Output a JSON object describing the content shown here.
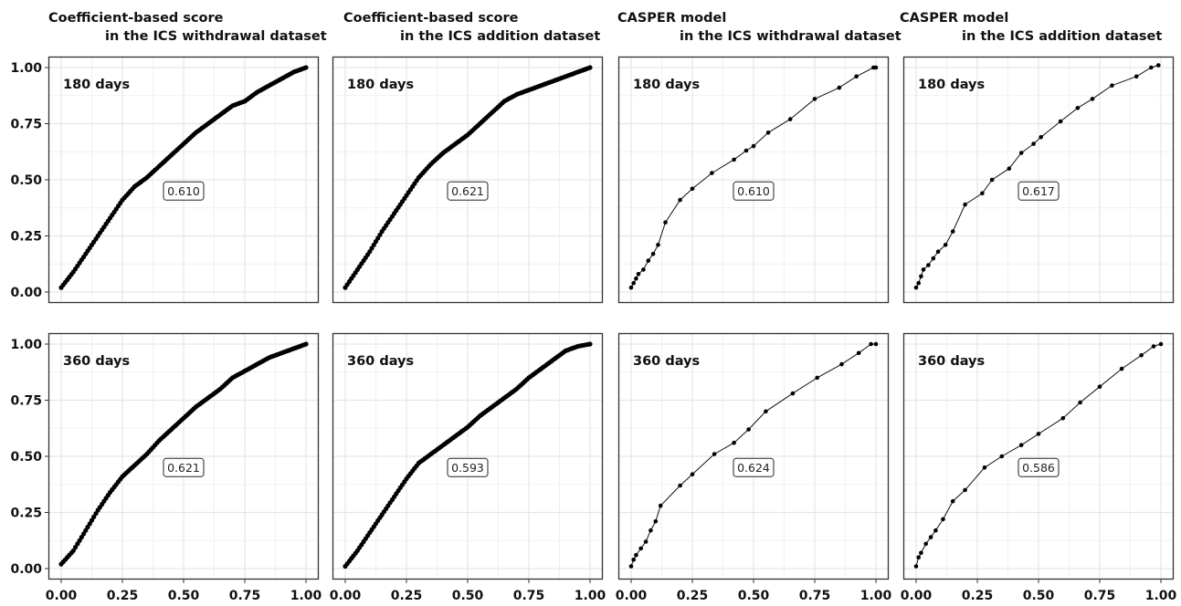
{
  "column_titles": [
    {
      "line1": "Coefficient-based score",
      "line2": "in the ICS withdrawal dataset"
    },
    {
      "line1": "Coefficient-based score",
      "line2": "in the ICS addition dataset"
    },
    {
      "line1": "CASPER model",
      "line2": "in the ICS withdrawal dataset"
    },
    {
      "line1": "CASPER model",
      "line2": "in the ICS addition dataset"
    }
  ],
  "row_labels": [
    "180 days",
    "360 days"
  ],
  "colors": {
    "line": "#111111",
    "point": "#000000",
    "grid": "#e6e6e6",
    "frame": "#333333"
  },
  "chart_data": [
    {
      "type": "line",
      "row": 0,
      "col": 0,
      "label": "180 days",
      "annotation": "0.610",
      "dense": true,
      "x": [
        0,
        0.05,
        0.1,
        0.15,
        0.2,
        0.25,
        0.3,
        0.35,
        0.4,
        0.45,
        0.5,
        0.55,
        0.6,
        0.65,
        0.7,
        0.75,
        0.8,
        0.85,
        0.9,
        0.95,
        1.0
      ],
      "y": [
        0.02,
        0.09,
        0.17,
        0.25,
        0.33,
        0.41,
        0.47,
        0.51,
        0.56,
        0.61,
        0.66,
        0.71,
        0.75,
        0.79,
        0.83,
        0.85,
        0.89,
        0.92,
        0.95,
        0.98,
        1.0
      ],
      "xlim": [
        0,
        1
      ],
      "ylim": [
        0,
        1
      ],
      "xticks": [
        "0.00",
        "0.25",
        "0.50",
        "0.75",
        "1.00"
      ],
      "yticks": [
        "0.00",
        "0.25",
        "0.50",
        "0.75",
        "1.00"
      ]
    },
    {
      "type": "line",
      "row": 0,
      "col": 1,
      "label": "180 days",
      "annotation": "0.621",
      "dense": true,
      "x": [
        0,
        0.05,
        0.1,
        0.15,
        0.2,
        0.25,
        0.3,
        0.35,
        0.4,
        0.45,
        0.5,
        0.55,
        0.6,
        0.65,
        0.7,
        0.75,
        0.8,
        0.85,
        0.9,
        0.95,
        1.0
      ],
      "y": [
        0.02,
        0.1,
        0.18,
        0.27,
        0.35,
        0.43,
        0.51,
        0.57,
        0.62,
        0.66,
        0.7,
        0.75,
        0.8,
        0.85,
        0.88,
        0.9,
        0.92,
        0.94,
        0.96,
        0.98,
        1.0
      ],
      "xlim": [
        0,
        1
      ],
      "ylim": [
        0,
        1
      ],
      "xticks": [
        "0.00",
        "0.25",
        "0.50",
        "0.75",
        "1.00"
      ],
      "yticks": [
        "0.00",
        "0.25",
        "0.50",
        "0.75",
        "1.00"
      ]
    },
    {
      "type": "line",
      "row": 0,
      "col": 2,
      "label": "180 days",
      "annotation": "0.610",
      "dense": false,
      "x": [
        0,
        0.01,
        0.02,
        0.03,
        0.05,
        0.07,
        0.09,
        0.11,
        0.14,
        0.2,
        0.25,
        0.33,
        0.42,
        0.47,
        0.5,
        0.56,
        0.65,
        0.75,
        0.85,
        0.92,
        0.99,
        1.0
      ],
      "y": [
        0.02,
        0.04,
        0.06,
        0.08,
        0.1,
        0.14,
        0.17,
        0.21,
        0.31,
        0.41,
        0.46,
        0.53,
        0.59,
        0.63,
        0.65,
        0.71,
        0.77,
        0.86,
        0.91,
        0.96,
        1.0,
        1.0
      ],
      "xlim": [
        0,
        1
      ],
      "ylim": [
        0,
        1
      ],
      "xticks": [
        "0.00",
        "0.25",
        "0.50",
        "0.75",
        "1.00"
      ],
      "yticks": [
        "0.00",
        "0.25",
        "0.50",
        "0.75",
        "1.00"
      ]
    },
    {
      "type": "line",
      "row": 0,
      "col": 3,
      "label": "180 days",
      "annotation": "0.617",
      "dense": false,
      "x": [
        0,
        0.01,
        0.02,
        0.03,
        0.05,
        0.07,
        0.09,
        0.12,
        0.15,
        0.2,
        0.27,
        0.31,
        0.38,
        0.43,
        0.48,
        0.51,
        0.59,
        0.66,
        0.72,
        0.8,
        0.9,
        0.96,
        0.99
      ],
      "y": [
        0.02,
        0.04,
        0.07,
        0.1,
        0.12,
        0.15,
        0.18,
        0.21,
        0.27,
        0.39,
        0.44,
        0.5,
        0.55,
        0.62,
        0.66,
        0.69,
        0.76,
        0.82,
        0.86,
        0.92,
        0.96,
        1.0,
        1.01
      ],
      "xlim": [
        0,
        1
      ],
      "ylim": [
        0,
        1
      ],
      "xticks": [
        "0.00",
        "0.25",
        "0.50",
        "0.75",
        "1.00"
      ],
      "yticks": [
        "0.00",
        "0.25",
        "0.50",
        "0.75",
        "1.00"
      ]
    },
    {
      "type": "line",
      "row": 1,
      "col": 0,
      "label": "360 days",
      "annotation": "0.621",
      "dense": true,
      "x": [
        0,
        0.05,
        0.1,
        0.15,
        0.2,
        0.25,
        0.3,
        0.35,
        0.4,
        0.45,
        0.5,
        0.55,
        0.6,
        0.65,
        0.7,
        0.75,
        0.8,
        0.85,
        0.9,
        0.95,
        1.0
      ],
      "y": [
        0.02,
        0.08,
        0.17,
        0.26,
        0.34,
        0.41,
        0.46,
        0.51,
        0.57,
        0.62,
        0.67,
        0.72,
        0.76,
        0.8,
        0.85,
        0.88,
        0.91,
        0.94,
        0.96,
        0.98,
        1.0
      ],
      "xlim": [
        0,
        1
      ],
      "ylim": [
        0,
        1
      ],
      "xticks": [
        "0.00",
        "0.25",
        "0.50",
        "0.75",
        "1.00"
      ],
      "yticks": [
        "0.00",
        "0.25",
        "0.50",
        "0.75",
        "1.00"
      ]
    },
    {
      "type": "line",
      "row": 1,
      "col": 1,
      "label": "360 days",
      "annotation": "0.593",
      "dense": true,
      "x": [
        0,
        0.05,
        0.1,
        0.15,
        0.2,
        0.25,
        0.3,
        0.35,
        0.4,
        0.45,
        0.5,
        0.55,
        0.6,
        0.65,
        0.7,
        0.75,
        0.8,
        0.85,
        0.9,
        0.95,
        1.0
      ],
      "y": [
        0.01,
        0.08,
        0.16,
        0.24,
        0.32,
        0.4,
        0.47,
        0.51,
        0.55,
        0.59,
        0.63,
        0.68,
        0.72,
        0.76,
        0.8,
        0.85,
        0.89,
        0.93,
        0.97,
        0.99,
        1.0
      ],
      "xlim": [
        0,
        1
      ],
      "ylim": [
        0,
        1
      ],
      "xticks": [
        "0.00",
        "0.25",
        "0.50",
        "0.75",
        "1.00"
      ],
      "yticks": [
        "0.00",
        "0.25",
        "0.50",
        "0.75",
        "1.00"
      ]
    },
    {
      "type": "line",
      "row": 1,
      "col": 2,
      "label": "360 days",
      "annotation": "0.624",
      "dense": false,
      "x": [
        0,
        0.01,
        0.02,
        0.04,
        0.06,
        0.08,
        0.1,
        0.12,
        0.2,
        0.25,
        0.34,
        0.42,
        0.48,
        0.55,
        0.66,
        0.76,
        0.86,
        0.93,
        0.98,
        1.0
      ],
      "y": [
        0.01,
        0.04,
        0.06,
        0.09,
        0.12,
        0.17,
        0.21,
        0.28,
        0.37,
        0.42,
        0.51,
        0.56,
        0.62,
        0.7,
        0.78,
        0.85,
        0.91,
        0.96,
        1.0,
        1.0
      ],
      "xlim": [
        0,
        1
      ],
      "ylim": [
        0,
        1
      ],
      "xticks": [
        "0.00",
        "0.25",
        "0.50",
        "0.75",
        "1.00"
      ],
      "yticks": [
        "0.00",
        "0.25",
        "0.50",
        "0.75",
        "1.00"
      ]
    },
    {
      "type": "line",
      "row": 1,
      "col": 3,
      "label": "360 days",
      "annotation": "0.586",
      "dense": false,
      "x": [
        0,
        0.01,
        0.02,
        0.04,
        0.06,
        0.08,
        0.11,
        0.15,
        0.2,
        0.28,
        0.35,
        0.43,
        0.5,
        0.6,
        0.67,
        0.75,
        0.84,
        0.92,
        0.97,
        1.0
      ],
      "y": [
        0.01,
        0.05,
        0.07,
        0.11,
        0.14,
        0.17,
        0.22,
        0.3,
        0.35,
        0.45,
        0.5,
        0.55,
        0.6,
        0.67,
        0.74,
        0.81,
        0.89,
        0.95,
        0.99,
        1.0
      ],
      "xlim": [
        0,
        1
      ],
      "ylim": [
        0,
        1
      ],
      "xticks": [
        "0.00",
        "0.25",
        "0.50",
        "0.75",
        "1.00"
      ],
      "yticks": [
        "0.00",
        "0.25",
        "0.50",
        "0.75",
        "1.00"
      ]
    }
  ]
}
